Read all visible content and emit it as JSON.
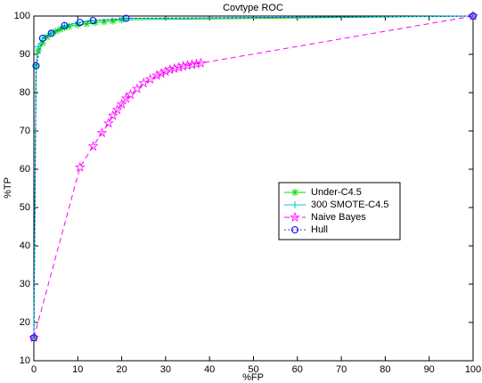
{
  "chart_data": {
    "type": "line",
    "title": "Covtype ROC",
    "xlabel": "%FP",
    "ylabel": "%TP",
    "xlim": [
      0,
      100
    ],
    "ylim": [
      10,
      100
    ],
    "xticks": [
      0,
      10,
      20,
      30,
      40,
      50,
      60,
      70,
      80,
      90,
      100
    ],
    "yticks": [
      10,
      20,
      30,
      40,
      50,
      60,
      70,
      80,
      90,
      100
    ],
    "grid": false,
    "legend_loc": "center right",
    "series": [
      {
        "name": "Under-C4.5",
        "color": "#00dd00",
        "marker": "asterisk",
        "linestyle": "solid",
        "x": [
          0,
          0.5,
          1,
          2,
          3,
          4,
          5,
          6,
          7,
          8,
          10,
          12,
          14,
          16,
          18,
          20,
          100
        ],
        "values": [
          16,
          87,
          91,
          93,
          94.5,
          95.5,
          96,
          96.5,
          97,
          97.3,
          97.7,
          98,
          98.3,
          98.5,
          98.7,
          99,
          100
        ]
      },
      {
        "name": "300 SMOTE-C4.5",
        "color": "#00cccc",
        "marker": "plus",
        "linestyle": "solid",
        "x": [
          0,
          0.5,
          1,
          2,
          4,
          7,
          10,
          13,
          20,
          21,
          100
        ],
        "values": [
          16,
          87,
          92,
          94.2,
          95.5,
          97.5,
          98.3,
          98.8,
          99.2,
          99.4,
          100
        ]
      },
      {
        "name": "Naive Bayes",
        "color": "#ff00ff",
        "marker": "star",
        "linestyle": "dashed",
        "x": [
          0,
          10.5,
          13.5,
          15.5,
          17,
          18,
          19,
          20,
          21,
          22,
          23.5,
          25,
          26.5,
          28,
          29,
          30,
          31,
          32,
          33,
          34,
          35,
          36,
          37,
          38,
          100
        ],
        "values": [
          16,
          60.5,
          66,
          69.5,
          72,
          74,
          75.5,
          77,
          78.5,
          79.5,
          81,
          82.5,
          83.5,
          84.5,
          85,
          85.5,
          86,
          86.3,
          86.6,
          86.9,
          87.1,
          87.3,
          87.5,
          87.7,
          100
        ]
      },
      {
        "name": "Hull",
        "color": "#0000ff",
        "marker": "circle",
        "linestyle": "dotted",
        "x": [
          0,
          0.5,
          2,
          4,
          7,
          10.5,
          13.5,
          21,
          100
        ],
        "values": [
          16,
          87,
          94.2,
          95.5,
          97.5,
          98.3,
          98.8,
          99.4,
          100
        ]
      }
    ]
  }
}
